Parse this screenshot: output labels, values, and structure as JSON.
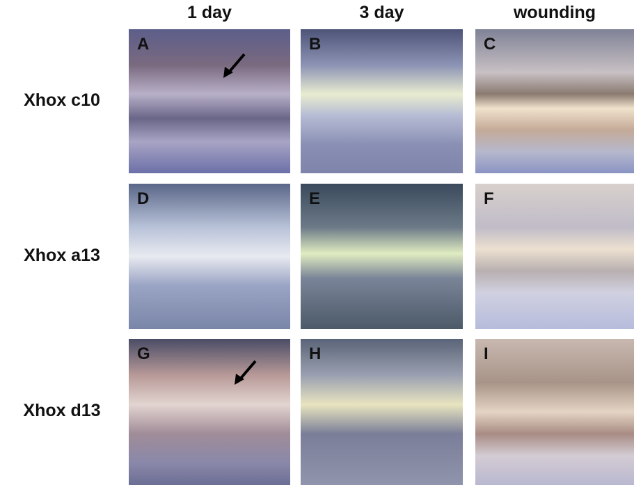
{
  "columns": [
    "1 day",
    "3 day",
    "wounding"
  ],
  "rows": [
    {
      "label": "Xhox c10",
      "panels": [
        "A",
        "B",
        "C"
      ]
    },
    {
      "label": "Xhox a13",
      "panels": [
        "D",
        "E",
        "F"
      ]
    },
    {
      "label": "Xhox d13",
      "panels": [
        "G",
        "H",
        "I"
      ]
    }
  ]
}
